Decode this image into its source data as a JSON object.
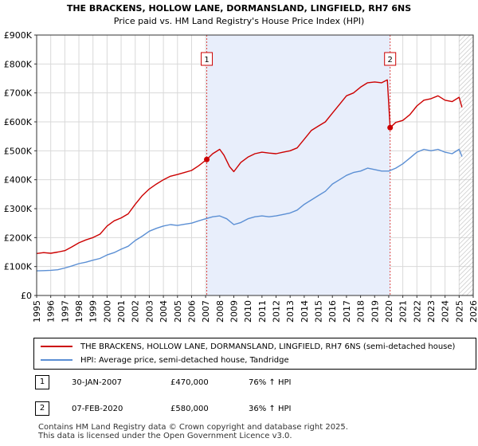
{
  "chart_data": {
    "type": "line",
    "title": "THE BRACKENS, HOLLOW LANE, DORMANSLAND, LINGFIELD, RH7 6NS",
    "subtitle": "Price paid vs. HM Land Registry's House Price Index (HPI)",
    "xlim": [
      1995.0,
      2026.0
    ],
    "ylim": [
      0,
      900000
    ],
    "x_ticks": [
      1995,
      1996,
      1997,
      1998,
      1999,
      2000,
      2001,
      2002,
      2003,
      2004,
      2005,
      2006,
      2007,
      2008,
      2009,
      2010,
      2011,
      2012,
      2013,
      2014,
      2015,
      2016,
      2017,
      2018,
      2019,
      2020,
      2021,
      2022,
      2023,
      2024,
      2025,
      2026
    ],
    "y_ticks": [
      {
        "value": 0,
        "label": "£0"
      },
      {
        "value": 100000,
        "label": "£100K"
      },
      {
        "value": 200000,
        "label": "£200K"
      },
      {
        "value": 300000,
        "label": "£300K"
      },
      {
        "value": 400000,
        "label": "£400K"
      },
      {
        "value": 500000,
        "label": "£500K"
      },
      {
        "value": 600000,
        "label": "£600K"
      },
      {
        "value": 700000,
        "label": "£700K"
      },
      {
        "value": 800000,
        "label": "£800K"
      },
      {
        "value": 900000,
        "label": "£900K"
      }
    ],
    "shaded_region": [
      2007.08,
      2020.1
    ],
    "hatched_from": 2025.0,
    "series": [
      {
        "name": "THE BRACKENS, HOLLOW LANE, DORMANSLAND, LINGFIELD, RH7 6NS (semi-detached house)",
        "color": "#cc0000",
        "points": [
          [
            1995.0,
            145000
          ],
          [
            1995.5,
            148000
          ],
          [
            1996.0,
            146000
          ],
          [
            1996.5,
            150000
          ],
          [
            1997.0,
            155000
          ],
          [
            1997.5,
            168000
          ],
          [
            1998.0,
            182000
          ],
          [
            1998.5,
            192000
          ],
          [
            1999.0,
            200000
          ],
          [
            1999.5,
            212000
          ],
          [
            2000.0,
            240000
          ],
          [
            2000.5,
            258000
          ],
          [
            2001.0,
            268000
          ],
          [
            2001.5,
            282000
          ],
          [
            2002.0,
            315000
          ],
          [
            2002.5,
            345000
          ],
          [
            2003.0,
            368000
          ],
          [
            2003.5,
            385000
          ],
          [
            2004.0,
            400000
          ],
          [
            2004.5,
            412000
          ],
          [
            2005.0,
            418000
          ],
          [
            2005.5,
            425000
          ],
          [
            2006.0,
            432000
          ],
          [
            2006.5,
            448000
          ],
          [
            2007.08,
            470000
          ],
          [
            2007.5,
            490000
          ],
          [
            2008.0,
            505000
          ],
          [
            2008.3,
            485000
          ],
          [
            2008.7,
            445000
          ],
          [
            2009.0,
            428000
          ],
          [
            2009.5,
            460000
          ],
          [
            2010.0,
            478000
          ],
          [
            2010.5,
            490000
          ],
          [
            2011.0,
            495000
          ],
          [
            2011.5,
            492000
          ],
          [
            2012.0,
            490000
          ],
          [
            2012.5,
            495000
          ],
          [
            2013.0,
            500000
          ],
          [
            2013.5,
            510000
          ],
          [
            2014.0,
            540000
          ],
          [
            2014.5,
            570000
          ],
          [
            2015.0,
            585000
          ],
          [
            2015.5,
            600000
          ],
          [
            2016.0,
            630000
          ],
          [
            2016.5,
            660000
          ],
          [
            2017.0,
            690000
          ],
          [
            2017.5,
            700000
          ],
          [
            2018.0,
            720000
          ],
          [
            2018.5,
            735000
          ],
          [
            2019.0,
            738000
          ],
          [
            2019.5,
            735000
          ],
          [
            2019.9,
            745000
          ],
          [
            2020.1,
            580000
          ],
          [
            2020.5,
            598000
          ],
          [
            2021.0,
            605000
          ],
          [
            2021.5,
            625000
          ],
          [
            2022.0,
            655000
          ],
          [
            2022.5,
            675000
          ],
          [
            2023.0,
            680000
          ],
          [
            2023.5,
            690000
          ],
          [
            2024.0,
            675000
          ],
          [
            2024.5,
            670000
          ],
          [
            2025.0,
            685000
          ],
          [
            2025.2,
            650000
          ]
        ]
      },
      {
        "name": "HPI: Average price, semi-detached house, Tandridge",
        "color": "#5b8fd4",
        "points": [
          [
            1995.0,
            85000
          ],
          [
            1995.5,
            86000
          ],
          [
            1996.0,
            87000
          ],
          [
            1996.5,
            89000
          ],
          [
            1997.0,
            95000
          ],
          [
            1997.5,
            102000
          ],
          [
            1998.0,
            110000
          ],
          [
            1998.5,
            115000
          ],
          [
            1999.0,
            122000
          ],
          [
            1999.5,
            128000
          ],
          [
            2000.0,
            140000
          ],
          [
            2000.5,
            148000
          ],
          [
            2001.0,
            160000
          ],
          [
            2001.5,
            170000
          ],
          [
            2002.0,
            190000
          ],
          [
            2002.5,
            205000
          ],
          [
            2003.0,
            222000
          ],
          [
            2003.5,
            232000
          ],
          [
            2004.0,
            240000
          ],
          [
            2004.5,
            245000
          ],
          [
            2005.0,
            242000
          ],
          [
            2005.5,
            246000
          ],
          [
            2006.0,
            250000
          ],
          [
            2006.5,
            258000
          ],
          [
            2007.0,
            265000
          ],
          [
            2007.5,
            272000
          ],
          [
            2008.0,
            275000
          ],
          [
            2008.5,
            265000
          ],
          [
            2009.0,
            245000
          ],
          [
            2009.5,
            252000
          ],
          [
            2010.0,
            265000
          ],
          [
            2010.5,
            272000
          ],
          [
            2011.0,
            275000
          ],
          [
            2011.5,
            272000
          ],
          [
            2012.0,
            275000
          ],
          [
            2012.5,
            280000
          ],
          [
            2013.0,
            285000
          ],
          [
            2013.5,
            295000
          ],
          [
            2014.0,
            315000
          ],
          [
            2014.5,
            330000
          ],
          [
            2015.0,
            345000
          ],
          [
            2015.5,
            360000
          ],
          [
            2016.0,
            385000
          ],
          [
            2016.5,
            400000
          ],
          [
            2017.0,
            415000
          ],
          [
            2017.5,
            425000
          ],
          [
            2018.0,
            430000
          ],
          [
            2018.5,
            440000
          ],
          [
            2019.0,
            435000
          ],
          [
            2019.5,
            430000
          ],
          [
            2020.0,
            430000
          ],
          [
            2020.5,
            440000
          ],
          [
            2021.0,
            455000
          ],
          [
            2021.5,
            475000
          ],
          [
            2022.0,
            495000
          ],
          [
            2022.5,
            505000
          ],
          [
            2023.0,
            500000
          ],
          [
            2023.5,
            505000
          ],
          [
            2024.0,
            495000
          ],
          [
            2024.5,
            490000
          ],
          [
            2025.0,
            505000
          ],
          [
            2025.2,
            480000
          ]
        ]
      }
    ],
    "markers": [
      {
        "id": "1",
        "x": 2007.08,
        "y": 470000
      },
      {
        "id": "2",
        "x": 2020.1,
        "y": 580000
      }
    ]
  },
  "legend": {
    "items": [
      {
        "label": "THE BRACKENS, HOLLOW LANE, DORMANSLAND, LINGFIELD, RH7 6NS (semi-detached house)",
        "color": "#cc0000"
      },
      {
        "label": "HPI: Average price, semi-detached house, Tandridge",
        "color": "#5b8fd4"
      }
    ]
  },
  "sales": [
    {
      "num": "1",
      "date": "30-JAN-2007",
      "price": "£470,000",
      "hpi": "76% ↑ HPI"
    },
    {
      "num": "2",
      "date": "07-FEB-2020",
      "price": "£580,000",
      "hpi": "36% ↑ HPI"
    }
  ],
  "footer": {
    "line1": "Contains HM Land Registry data © Crown copyright and database right 2025.",
    "line2": "This data is licensed under the Open Government Licence v3.0."
  }
}
